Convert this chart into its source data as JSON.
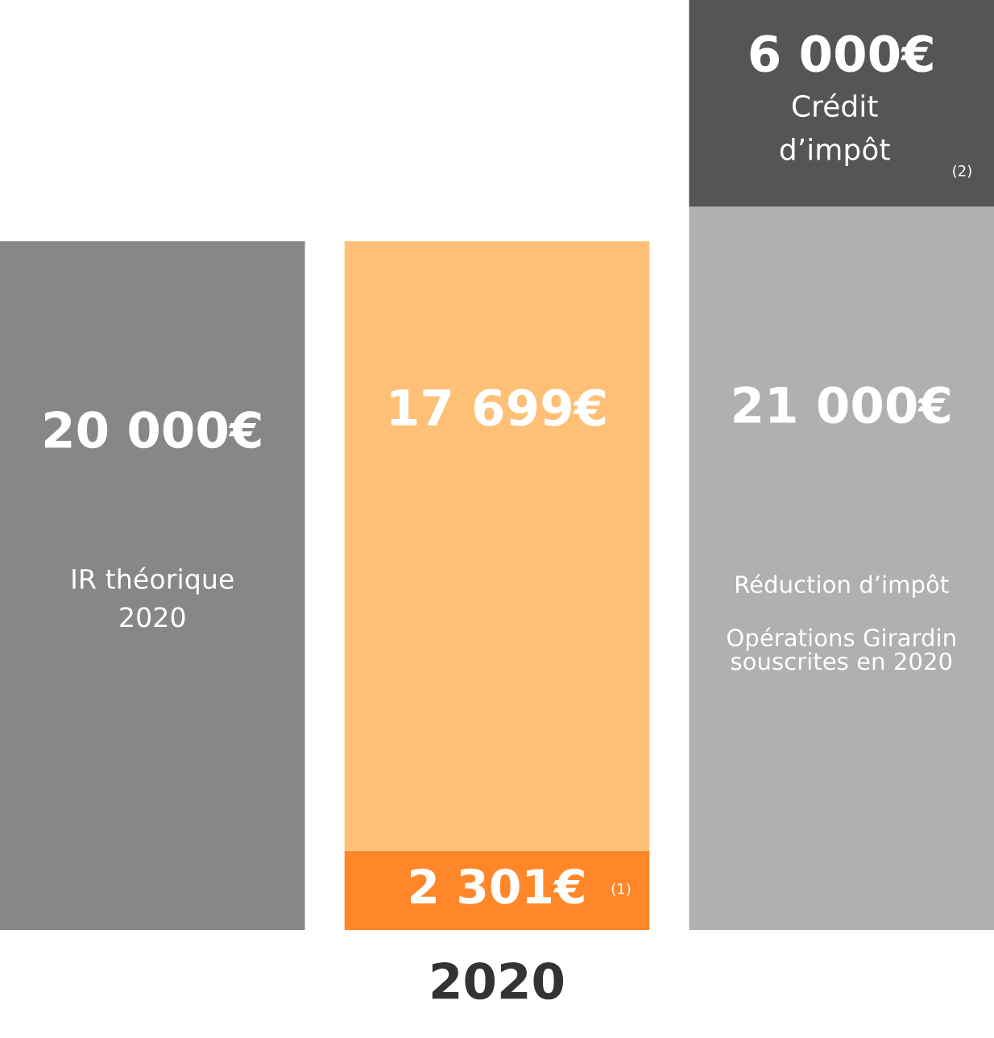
{
  "chart_data": {
    "type": "bar",
    "stacked": true,
    "categories": [
      null,
      "2020",
      null
    ],
    "series": [
      {
        "colors": [
          "#878787",
          "#ff8629",
          "#b0b0b0"
        ],
        "values": [
          20000,
          2301,
          21000
        ],
        "value_labels": [
          "20 000€",
          "2 301€",
          "21 000€"
        ]
      },
      {
        "colors": [
          "#878787",
          "#fec077",
          "#555554"
        ],
        "values": [
          null,
          17699,
          6000
        ],
        "value_labels": [
          null,
          "17 699€",
          "6 000€"
        ]
      }
    ],
    "annotations": [
      "IR théorique\n2020",
      "Réduction d’impôt",
      "Opérations Girardin\nsouscrites en 2020",
      "Crédit\nd’impôt",
      "(1)",
      "(2)"
    ],
    "grid": false,
    "legend": false
  }
}
